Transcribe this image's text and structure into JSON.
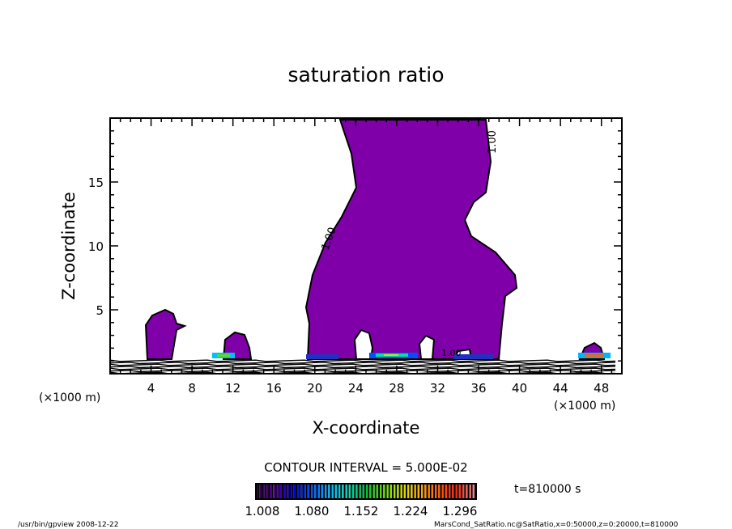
{
  "chart_data": {
    "type": "heatmap",
    "subtype": "contour",
    "title": "saturation ratio",
    "xlabel": "X-coordinate",
    "ylabel": "Z-coordinate",
    "x_unit_label": "(×1000 m)",
    "x_unit_label_right": "(×1000 m)",
    "xlim": [
      0,
      50
    ],
    "ylim": [
      0,
      20
    ],
    "xticks": [
      4,
      8,
      12,
      16,
      20,
      24,
      28,
      32,
      36,
      40,
      44,
      48
    ],
    "yticks": [
      5,
      10,
      15
    ],
    "contour_labels": [
      "1.00",
      "1.00",
      "1.00"
    ],
    "contour_interval": "CONTOUR INTERVAL = 5.000E-02",
    "colorbar": {
      "labels": [
        "1.008",
        "1.080",
        "1.152",
        "1.224",
        "1.296"
      ],
      "range": [
        1.0,
        1.32
      ],
      "colors": [
        "#2a0040",
        "#5a00a0",
        "#0000c8",
        "#0050ff",
        "#00b4ff",
        "#00e0c0",
        "#00c040",
        "#60e000",
        "#d0e000",
        "#ffb000",
        "#ff6000",
        "#ff2000",
        "#f08080"
      ]
    },
    "fill_color": "#7f00a8",
    "time_label": "t=810000 s",
    "footer_left": "/usr/bin/gpview   2008-12-22",
    "footer_right": "MarsCond_SatRatio.nc@SatRatio,x=0:50000,z=0:20000,t=810000"
  }
}
